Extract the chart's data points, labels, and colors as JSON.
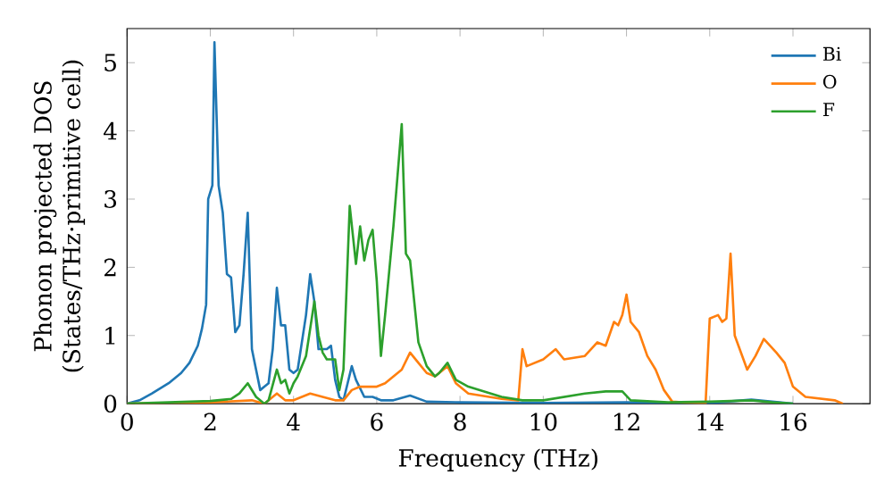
{
  "chart_data": {
    "type": "line",
    "xlabel": "Frequency (THz)",
    "ylabel": "Phonon projected DOS\n(States/THz·primitive cell)",
    "xlim": [
      0,
      17.85
    ],
    "ylim": [
      0,
      5.5
    ],
    "xticks": [
      0,
      2,
      4,
      6,
      8,
      10,
      12,
      14,
      16
    ],
    "yticks": [
      0,
      1,
      2,
      3,
      4,
      5
    ],
    "legend": "top right",
    "grid": false,
    "series": [
      {
        "name": "Bi",
        "color": "#1f77b4",
        "x": [
          0,
          0.3,
          0.6,
          1,
          1.3,
          1.5,
          1.7,
          1.8,
          1.9,
          1.95,
          2.05,
          2.1,
          2.2,
          2.3,
          2.4,
          2.5,
          2.6,
          2.7,
          2.8,
          2.9,
          3.0,
          3.1,
          3.2,
          3.3,
          3.4,
          3.5,
          3.6,
          3.7,
          3.8,
          3.9,
          4.0,
          4.1,
          4.3,
          4.4,
          4.5,
          4.6,
          4.8,
          4.9,
          5.0,
          5.1,
          5.2,
          5.3,
          5.4,
          5.5,
          5.7,
          5.9,
          6.1,
          6.4,
          6.8,
          7.2,
          8,
          10,
          12,
          13,
          14,
          15,
          15.5,
          16
        ],
        "values": [
          0,
          0.05,
          0.15,
          0.3,
          0.45,
          0.6,
          0.85,
          1.1,
          1.45,
          3.0,
          3.2,
          5.3,
          3.2,
          2.8,
          1.9,
          1.85,
          1.05,
          1.15,
          1.9,
          2.8,
          0.8,
          0.5,
          0.2,
          0.25,
          0.3,
          0.8,
          1.7,
          1.15,
          1.15,
          0.5,
          0.45,
          0.5,
          1.3,
          1.9,
          1.5,
          0.8,
          0.8,
          0.85,
          0.35,
          0.1,
          0.05,
          0.3,
          0.55,
          0.35,
          0.1,
          0.1,
          0.05,
          0.05,
          0.12,
          0.03,
          0.02,
          0.01,
          0.02,
          0.01,
          0.01,
          0.06,
          0.03,
          0
        ]
      },
      {
        "name": "O",
        "color": "#ff7f0e",
        "x": [
          0,
          2,
          3,
          3.3,
          3.6,
          3.8,
          4.0,
          4.4,
          4.7,
          5.0,
          5.2,
          5.4,
          5.6,
          5.8,
          6.0,
          6.2,
          6.4,
          6.6,
          6.8,
          7.0,
          7.2,
          7.4,
          7.7,
          7.9,
          8.2,
          9,
          9.4,
          9.5,
          9.6,
          10,
          10.3,
          10.5,
          11,
          11.3,
          11.5,
          11.7,
          11.8,
          11.9,
          12.0,
          12.1,
          12.3,
          12.5,
          12.7,
          12.9,
          13.1,
          13.9,
          14.0,
          14.2,
          14.3,
          14.4,
          14.5,
          14.6,
          14.9,
          15.1,
          15.3,
          15.6,
          15.8,
          16.0,
          16.3,
          17,
          17.2
        ],
        "values": [
          0,
          0.02,
          0.05,
          0,
          0.15,
          0.05,
          0.05,
          0.15,
          0.1,
          0.05,
          0.05,
          0.2,
          0.25,
          0.25,
          0.25,
          0.3,
          0.4,
          0.5,
          0.75,
          0.6,
          0.45,
          0.4,
          0.55,
          0.3,
          0.15,
          0.07,
          0.05,
          0.8,
          0.55,
          0.65,
          0.8,
          0.65,
          0.7,
          0.9,
          0.85,
          1.2,
          1.15,
          1.3,
          1.6,
          1.2,
          1.05,
          0.7,
          0.5,
          0.2,
          0.03,
          0,
          1.25,
          1.3,
          1.2,
          1.25,
          2.2,
          1.0,
          0.5,
          0.7,
          0.95,
          0.75,
          0.6,
          0.25,
          0.1,
          0.05,
          0
        ]
      },
      {
        "name": "F",
        "color": "#2ca02c",
        "x": [
          0,
          1,
          2,
          2.5,
          2.7,
          2.9,
          3.1,
          3.3,
          3.4,
          3.6,
          3.7,
          3.8,
          3.9,
          4.0,
          4.1,
          4.3,
          4.5,
          4.6,
          4.7,
          4.8,
          5.0,
          5.1,
          5.2,
          5.35,
          5.5,
          5.6,
          5.7,
          5.8,
          5.9,
          6.0,
          6.1,
          6.2,
          6.4,
          6.6,
          6.7,
          6.8,
          7.0,
          7.2,
          7.4,
          7.5,
          7.7,
          7.9,
          8.2,
          9.0,
          9.5,
          10,
          11,
          11.5,
          11.9,
          12.1,
          13,
          14,
          15,
          15.5,
          16
        ],
        "values": [
          0,
          0.02,
          0.04,
          0.07,
          0.15,
          0.3,
          0.1,
          0,
          0.05,
          0.5,
          0.3,
          0.35,
          0.15,
          0.3,
          0.4,
          0.7,
          1.5,
          1.0,
          0.75,
          0.65,
          0.65,
          0.2,
          0.5,
          2.9,
          2.05,
          2.6,
          2.1,
          2.4,
          2.55,
          1.8,
          0.7,
          1.3,
          2.6,
          4.1,
          2.2,
          2.1,
          0.9,
          0.55,
          0.4,
          0.45,
          0.6,
          0.35,
          0.25,
          0.1,
          0.05,
          0.05,
          0.15,
          0.18,
          0.18,
          0.05,
          0.02,
          0.03,
          0.05,
          0.02,
          0
        ]
      }
    ]
  }
}
